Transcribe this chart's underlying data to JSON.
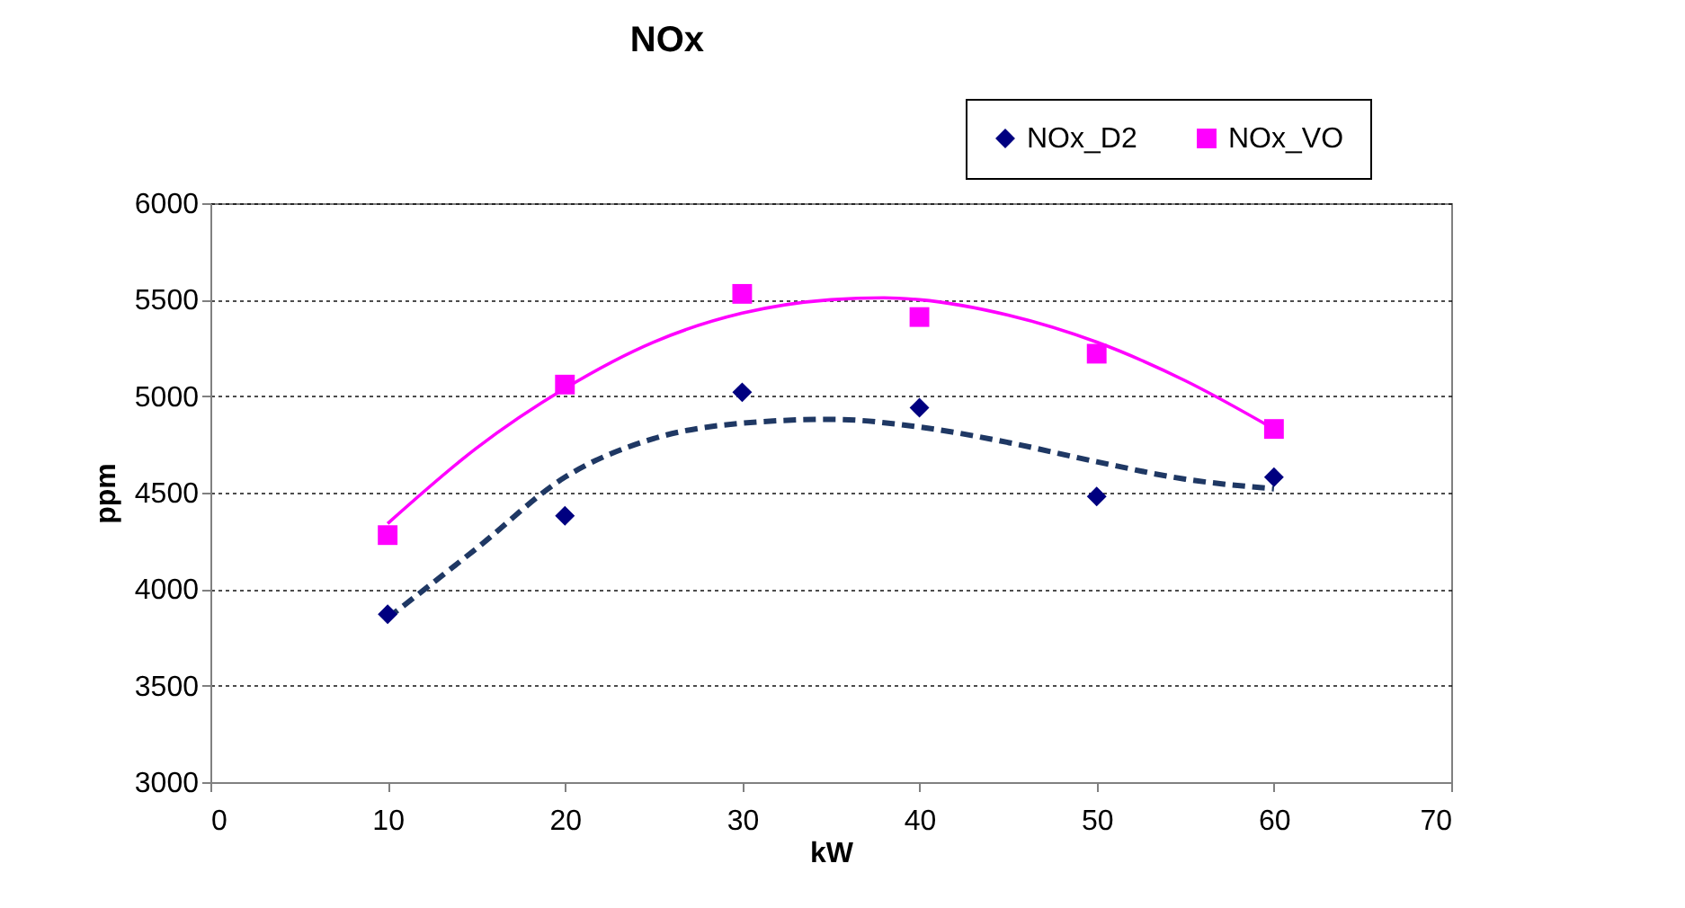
{
  "chart_data": {
    "type": "scatter",
    "title": "NOx",
    "xlabel": "kW",
    "ylabel": "ppm",
    "xlim": [
      0,
      70
    ],
    "xticks": [
      0,
      10,
      20,
      30,
      40,
      50,
      60,
      70
    ],
    "ylim": [
      3000,
      6000
    ],
    "yticks": [
      3000,
      3500,
      4000,
      4500,
      5000,
      5500,
      6000
    ],
    "grid": "y",
    "legend": "top right",
    "series": [
      {
        "name": "NOx_D2",
        "color": "#000080",
        "marker": "diamond",
        "x": [
          10,
          20,
          30,
          40,
          50,
          60
        ],
        "values": [
          3870,
          4380,
          5020,
          4940,
          4480,
          4580
        ]
      },
      {
        "name": "NOx_VO",
        "color": "#ff00ff",
        "marker": "square",
        "x": [
          10,
          20,
          30,
          40,
          50,
          60
        ],
        "values": [
          4280,
          5060,
          5530,
          5410,
          5220,
          4830
        ]
      },
      {
        "type": "line",
        "color": "#1f3864",
        "line_style": "dashed",
        "x": [
          10,
          15,
          20,
          25,
          30,
          35,
          40,
          45,
          50,
          55,
          60
        ],
        "values": [
          3850,
          4210,
          4580,
          4780,
          4860,
          4880,
          4840,
          4760,
          4660,
          4570,
          4520
        ]
      },
      {
        "type": "line",
        "color": "#ff00ff",
        "line_style": "solid",
        "x": [
          10,
          15,
          20,
          25,
          30,
          35,
          38,
          40,
          45,
          50,
          55,
          60
        ],
        "values": [
          4340,
          4730,
          5040,
          5280,
          5430,
          5500,
          5510,
          5500,
          5420,
          5280,
          5080,
          4830
        ]
      }
    ]
  }
}
